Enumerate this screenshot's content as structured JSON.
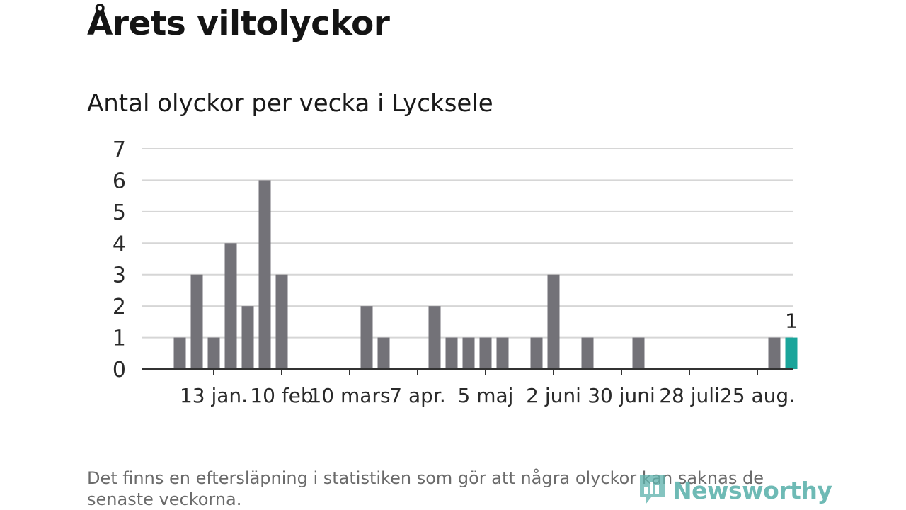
{
  "title": "Årets viltolyckor",
  "subtitle": "Antal olyckor per vecka i Lycksele",
  "footnote": "Det finns en eftersläpning i statistiken som gör att några olyckor kan saknas de senaste veckorna.",
  "brand": {
    "name": "Newsworthy",
    "icon": "newsworthy-logo-icon"
  },
  "colors": {
    "bar": "#737278",
    "highlight": "#1aa59b",
    "grid": "#d6d6d6",
    "axis": "#333333",
    "logo": "#5fb3ad"
  },
  "chart_data": {
    "type": "bar",
    "x": [
      "2024-01-01",
      "2024-01-08",
      "2024-01-15",
      "2024-01-22",
      "2024-01-29",
      "2024-02-05",
      "2024-02-12",
      "2024-03-18",
      "2024-03-25",
      "2024-04-15",
      "2024-04-22",
      "2024-04-29",
      "2024-05-06",
      "2024-05-13",
      "2024-05-27",
      "2024-06-03",
      "2024-06-17",
      "2024-07-08",
      "2024-09-02",
      "2024-09-09"
    ],
    "values": [
      1,
      3,
      1,
      4,
      2,
      6,
      3,
      2,
      1,
      2,
      1,
      1,
      1,
      1,
      1,
      3,
      1,
      1,
      1,
      1
    ],
    "highlight_index": 19,
    "value_label": "1",
    "ylim": [
      0,
      7
    ],
    "yticks": [
      "0",
      "1",
      "2",
      "3",
      "4",
      "5",
      "6",
      "7"
    ],
    "xticks": [
      {
        "date": "2024-01-15",
        "label": "13 jan."
      },
      {
        "date": "2024-02-12",
        "label": "10 feb"
      },
      {
        "date": "2024-03-11",
        "label": "10 mars"
      },
      {
        "date": "2024-04-08",
        "label": "7 apr."
      },
      {
        "date": "2024-05-06",
        "label": "5 maj"
      },
      {
        "date": "2024-06-03",
        "label": "2 juni"
      },
      {
        "date": "2024-07-01",
        "label": "30 juni"
      },
      {
        "date": "2024-07-29",
        "label": "28 juli"
      },
      {
        "date": "2024-08-26",
        "label": "25 aug."
      }
    ],
    "grid": true,
    "legend": "none"
  }
}
